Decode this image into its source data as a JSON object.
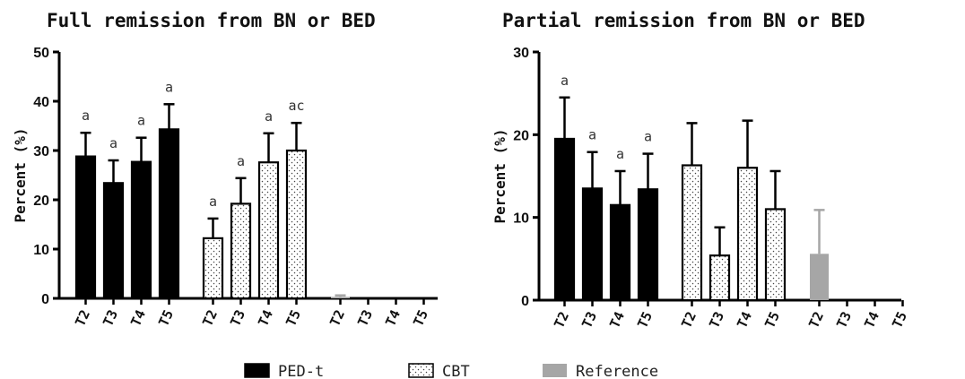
{
  "chart_data": [
    {
      "type": "bar",
      "title": "Full remission from BN or BED",
      "ylabel": "Percent (%)",
      "ylim": [
        0,
        50
      ],
      "yticks": [
        0,
        10,
        20,
        30,
        40,
        50
      ],
      "grid": false,
      "groups": [
        {
          "series": "PED-t",
          "color": "#000000",
          "categories": [
            "T2",
            "T3",
            "T4",
            "T5"
          ],
          "values": [
            28.8,
            23.4,
            27.7,
            34.3
          ],
          "error_upper": [
            33.6,
            28.0,
            32.6,
            39.4
          ],
          "annotations": [
            "a",
            "a",
            "a",
            "a"
          ]
        },
        {
          "series": "CBT",
          "color": "#ffffff",
          "categories": [
            "T2",
            "T3",
            "T4",
            "T5"
          ],
          "values": [
            12.2,
            19.2,
            27.6,
            30.0
          ],
          "error_upper": [
            16.2,
            24.4,
            33.5,
            35.6
          ],
          "annotations": [
            "a",
            "a",
            "a",
            "ac"
          ]
        },
        {
          "series": "Reference",
          "color": "#a6a6a6",
          "categories": [
            "T2",
            "T3",
            "T4",
            "T5"
          ],
          "values": [
            0.3,
            0,
            0,
            0
          ],
          "error_upper": [
            0.6,
            null,
            null,
            null
          ],
          "annotations": [
            "",
            "",
            "",
            ""
          ]
        }
      ]
    },
    {
      "type": "bar",
      "title": "Partial remission from BN or BED",
      "ylabel": "Percent (%)",
      "ylim": [
        0,
        30
      ],
      "yticks": [
        0,
        10,
        20,
        30
      ],
      "grid": false,
      "groups": [
        {
          "series": "PED-t",
          "color": "#000000",
          "categories": [
            "T2",
            "T3",
            "T4",
            "T5"
          ],
          "values": [
            19.5,
            13.5,
            11.5,
            13.4
          ],
          "error_upper": [
            24.5,
            17.9,
            15.6,
            17.7
          ],
          "annotations": [
            "a",
            "a",
            "a",
            "a"
          ]
        },
        {
          "series": "CBT",
          "color": "#ffffff",
          "categories": [
            "T2",
            "T3",
            "T4",
            "T5"
          ],
          "values": [
            16.3,
            5.4,
            16.0,
            11.0
          ],
          "error_upper": [
            21.4,
            8.8,
            21.7,
            15.6
          ],
          "annotations": [
            "",
            "",
            "",
            ""
          ]
        },
        {
          "series": "Reference",
          "color": "#a6a6a6",
          "categories": [
            "T2",
            "T3",
            "T4",
            "T5"
          ],
          "values": [
            5.6,
            0,
            0,
            0
          ],
          "error_upper": [
            10.9,
            null,
            null,
            null
          ],
          "annotations": [
            "",
            "",
            "",
            ""
          ]
        }
      ]
    }
  ],
  "legend": {
    "placement": "bottom-center",
    "items": [
      {
        "label": "PED-t",
        "color": "#000000",
        "pattern": "solid"
      },
      {
        "label": "CBT",
        "color": "#ffffff",
        "pattern": "dotted"
      },
      {
        "label": "Reference",
        "color": "#a6a6a6",
        "pattern": "solid"
      }
    ]
  }
}
